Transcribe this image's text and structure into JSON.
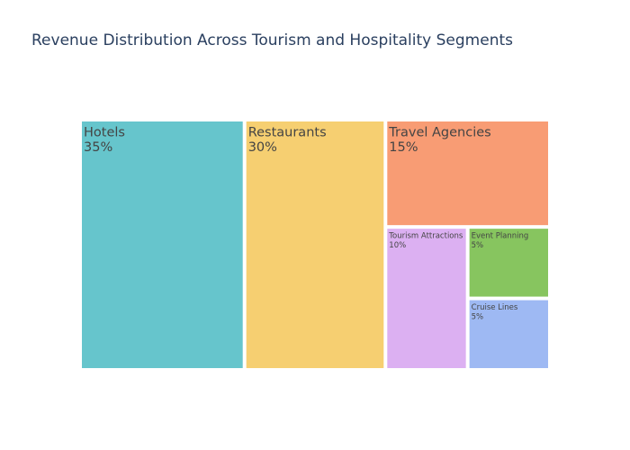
{
  "chart_data": {
    "type": "treemap",
    "title": "Revenue Distribution Across Tourism and Hospitality Segments",
    "unit": "%",
    "segments": [
      {
        "name": "Hotels",
        "value": 35,
        "label": "35%",
        "color": "#66c5cc"
      },
      {
        "name": "Restaurants",
        "value": 30,
        "label": "30%",
        "color": "#f6cf71"
      },
      {
        "name": "Travel Agencies",
        "value": 15,
        "label": "15%",
        "color": "#f89c74"
      },
      {
        "name": "Tourism Attractions",
        "value": 10,
        "label": "10%",
        "color": "#dcb0f2"
      },
      {
        "name": "Event Planning",
        "value": 5,
        "label": "5%",
        "color": "#87c55f"
      },
      {
        "name": "Cruise Lines",
        "value": 5,
        "label": "5%",
        "color": "#9eb9f3"
      }
    ]
  }
}
